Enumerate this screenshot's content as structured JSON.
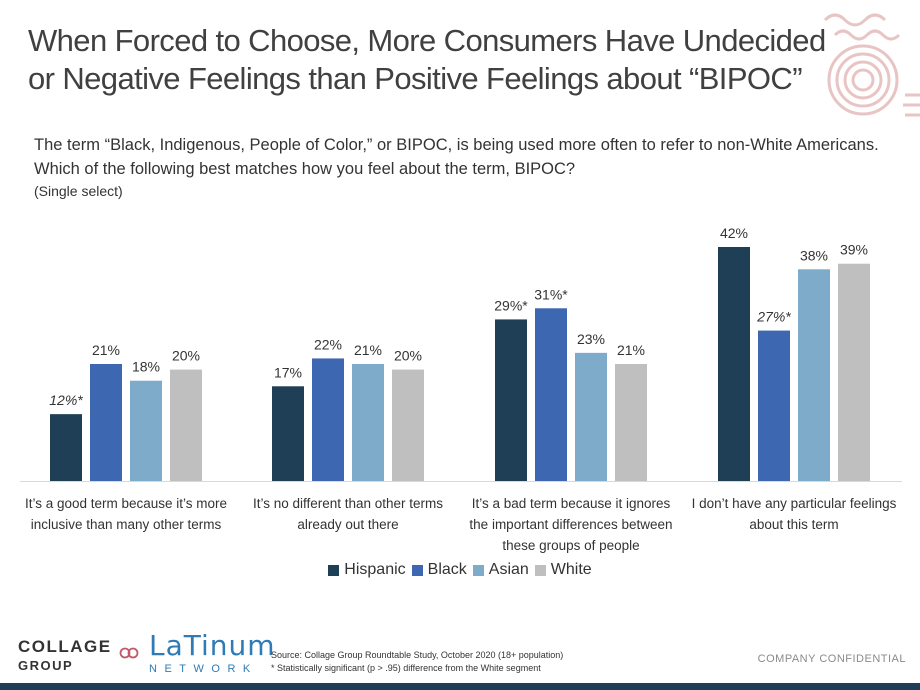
{
  "title": {
    "line1": "When Forced to Choose, More Consumers Have Undecided",
    "line2": "or Negative Feelings than Positive Feelings about “BIPOC”"
  },
  "question": {
    "text": "The term “Black, Indigenous, People of Color,” or BIPOC, is being used more often to refer to non-White Americans. Which of the following best matches how you feel about the term, BIPOC?",
    "note": "(Single select)"
  },
  "chart_data": {
    "type": "bar",
    "categories": [
      [
        "It’s a good term because it’s more",
        "inclusive than many other terms"
      ],
      [
        "It’s no different than other terms",
        "already out there"
      ],
      [
        "It’s a bad term because it ignores",
        "the important differences between",
        "these groups of people"
      ],
      [
        "I don’t have any particular feelings",
        "about this term"
      ]
    ],
    "series": [
      {
        "name": "Hispanic",
        "color": "#1f3f56",
        "values": [
          12,
          17,
          29,
          42
        ],
        "labels": [
          "12%*",
          "17%",
          "29%*",
          "42%"
        ],
        "italic": [
          true,
          false,
          false,
          false
        ]
      },
      {
        "name": "Black",
        "color": "#3d67b1",
        "values": [
          21,
          22,
          31,
          27
        ],
        "labels": [
          "21%",
          "22%",
          "31%*",
          "27%*"
        ],
        "italic": [
          false,
          false,
          false,
          true
        ]
      },
      {
        "name": "Asian",
        "color": "#7eabc9",
        "values": [
          18,
          21,
          23,
          38
        ],
        "labels": [
          "18%",
          "21%",
          "23%",
          "38%"
        ],
        "italic": [
          false,
          false,
          false,
          false
        ]
      },
      {
        "name": "White",
        "color": "#bfbfbf",
        "values": [
          20,
          20,
          21,
          39
        ],
        "labels": [
          "20%",
          "20%",
          "21%",
          "39%"
        ],
        "italic": [
          false,
          false,
          false,
          false
        ]
      }
    ],
    "ylim": [
      0,
      42
    ],
    "legend_position": "bottom",
    "grid": false
  },
  "footer": {
    "logo_collage": "COLLAGE",
    "logo_group": "GROUP",
    "logo_latinum": "LaTinum",
    "logo_network": "NETWORK",
    "source": "Source: Collage Group Roundtable Study, October 2020 (18+ population)",
    "significance": "* Statistically significant (p > .95) difference from the White segment",
    "confidential": "COMPANY CONFIDENTIAL"
  }
}
